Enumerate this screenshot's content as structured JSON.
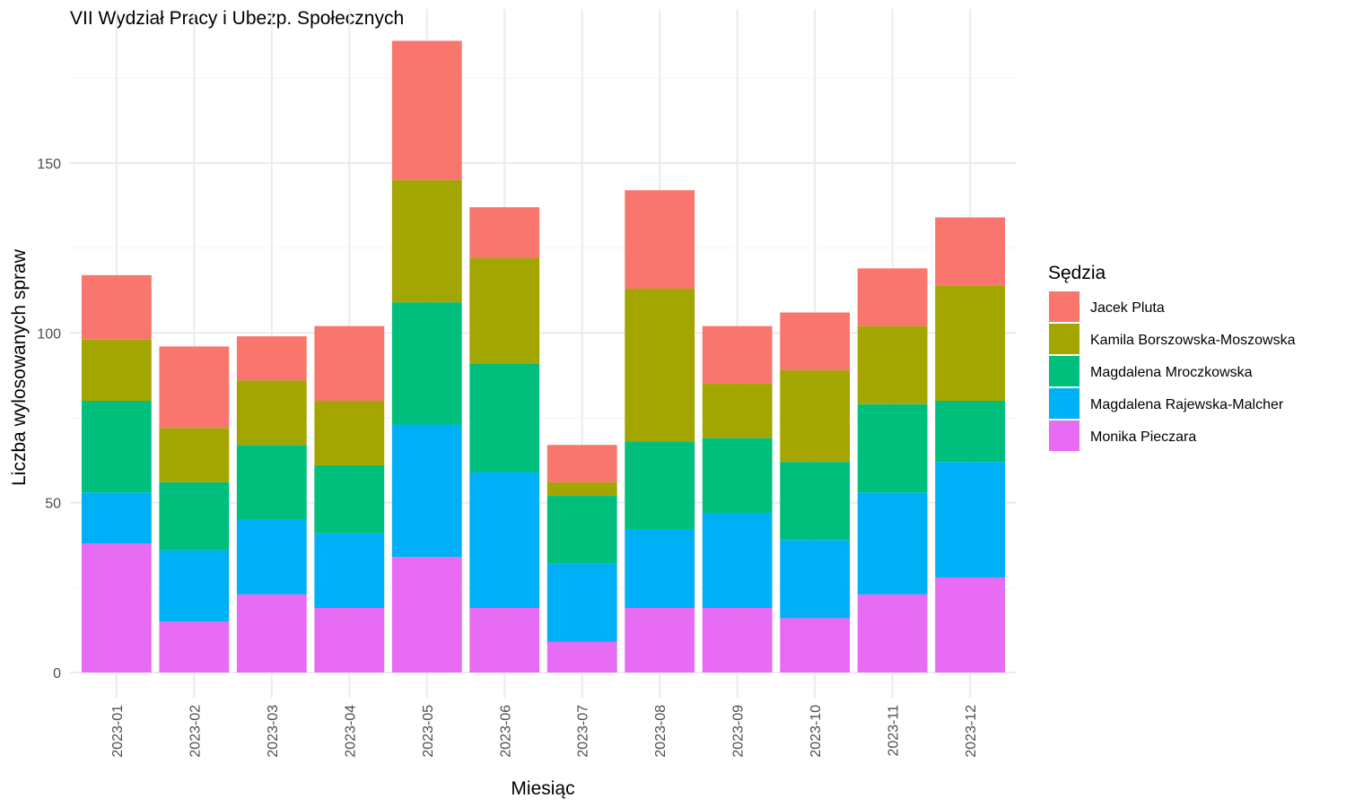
{
  "chart_data": {
    "type": "bar",
    "stacked": true,
    "title": "VII Wydział Pracy i Ubezp. Społecznych",
    "xlabel": "Miesiąc",
    "ylabel": "Liczba wylosowanych spraw",
    "ylim": [
      0,
      190
    ],
    "yticks": [
      0,
      50,
      100,
      150
    ],
    "grid": true,
    "legend_position": "right",
    "legend_title": "Sędzia",
    "categories": [
      "2023-01",
      "2023-02",
      "2023-03",
      "2023-04",
      "2023-05",
      "2023-06",
      "2023-07",
      "2023-08",
      "2023-09",
      "2023-10",
      "2023-11",
      "2023-12"
    ],
    "series": [
      {
        "name": "Monika Pieczara",
        "color": "#E76BF3",
        "values": [
          38,
          15,
          23,
          19,
          34,
          19,
          9,
          19,
          19,
          16,
          23,
          28
        ]
      },
      {
        "name": "Magdalena Rajewska-Malcher",
        "color": "#00B0F6",
        "values": [
          15,
          21,
          22,
          22,
          39,
          40,
          23,
          23,
          28,
          23,
          30,
          34
        ]
      },
      {
        "name": "Magdalena Mroczkowska",
        "color": "#00BF7D",
        "values": [
          27,
          20,
          22,
          20,
          36,
          32,
          20,
          26,
          22,
          23,
          26,
          18
        ]
      },
      {
        "name": "Kamila Borszowska-Moszowska",
        "color": "#A3A500",
        "values": [
          18,
          16,
          19,
          19,
          36,
          31,
          4,
          45,
          16,
          27,
          23,
          34
        ]
      },
      {
        "name": "Jacek Pluta",
        "color": "#F8766D",
        "values": [
          19,
          24,
          13,
          22,
          41,
          15,
          11,
          29,
          17,
          17,
          17,
          20
        ]
      }
    ],
    "legend_order": [
      "Jacek Pluta",
      "Kamila Borszowska-Moszowska",
      "Magdalena Mroczkowska",
      "Magdalena Rajewska-Malcher",
      "Monika Pieczara"
    ]
  }
}
